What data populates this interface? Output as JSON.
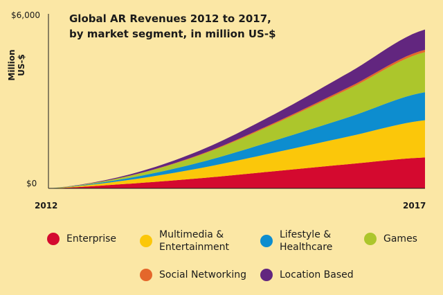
{
  "chart_data": {
    "type": "area",
    "stacked": true,
    "title": "Global AR Revenues 2012 to 2017,\nby market segment, in million US-$",
    "ylabel": "Million US-$",
    "xlabel": "",
    "x": [
      2012,
      2013,
      2014,
      2015,
      2016,
      2017
    ],
    "x_tick_labels": [
      "2012",
      "2017"
    ],
    "y_tick_labels": [
      "$6,000",
      "$0"
    ],
    "ylim": [
      0,
      6000
    ],
    "grid": false,
    "legend_position": "bottom",
    "series": [
      {
        "name": "Enterprise",
        "color": "#d4092f",
        "values": [
          0,
          150,
          350,
          600,
          850,
          1080
        ]
      },
      {
        "name": "Multimedia &\nEntertainment",
        "color": "#fbc70a",
        "values": [
          0,
          120,
          350,
          650,
          970,
          1300
        ]
      },
      {
        "name": "Lifestyle &\nHealthcare",
        "color": "#0d8dcf",
        "values": [
          0,
          60,
          200,
          420,
          680,
          980
        ]
      },
      {
        "name": "Games",
        "color": "#acc62c",
        "values": [
          0,
          60,
          250,
          580,
          990,
          1400
        ]
      },
      {
        "name": "Social Networking",
        "color": "#e4672b",
        "values": [
          0,
          5,
          20,
          40,
          60,
          80
        ]
      },
      {
        "name": "Location Based",
        "color": "#62267f",
        "values": [
          0,
          40,
          140,
          300,
          510,
          710
        ]
      }
    ]
  }
}
